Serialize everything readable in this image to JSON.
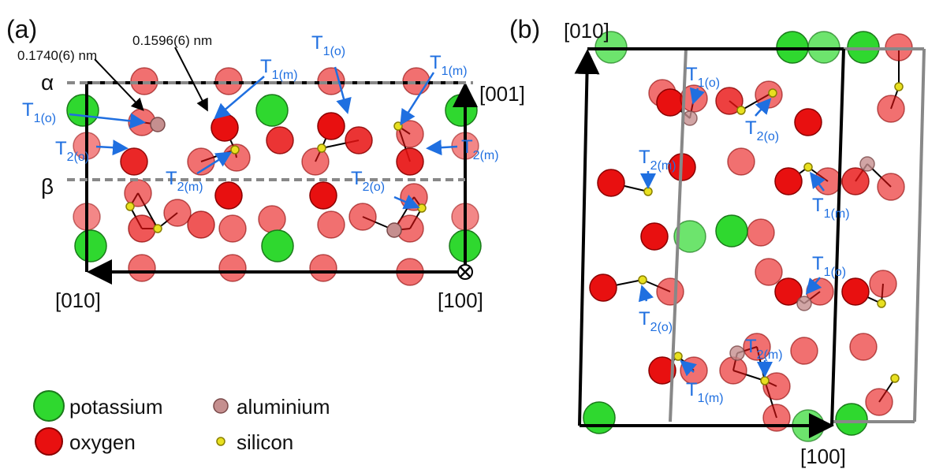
{
  "panel_a": {
    "label": "(a)",
    "bond_lengths": [
      "0.1740(6) nm",
      "0.1596(6) nm"
    ],
    "planes": [
      "α",
      "β"
    ],
    "axes": [
      "[001]",
      "[010]",
      "[100]"
    ],
    "sites": [
      {
        "symbol": "T",
        "sub": "1(o)"
      },
      {
        "symbol": "T",
        "sub": "1(m)"
      },
      {
        "symbol": "T",
        "sub": "1(m)"
      },
      {
        "symbol": "T",
        "sub": "1(o)"
      },
      {
        "symbol": "T",
        "sub": "2(o)"
      },
      {
        "symbol": "T",
        "sub": "2(m)"
      },
      {
        "symbol": "T",
        "sub": "2(m)"
      },
      {
        "symbol": "T",
        "sub": "2(o)"
      }
    ]
  },
  "panel_b": {
    "label": "(b)",
    "axes": [
      "[010]",
      "[100]"
    ],
    "sites": [
      {
        "symbol": "T",
        "sub": "1(o)"
      },
      {
        "symbol": "T",
        "sub": "2(o)"
      },
      {
        "symbol": "T",
        "sub": "2(m)"
      },
      {
        "symbol": "T",
        "sub": "1(m)"
      },
      {
        "symbol": "T",
        "sub": "1(o)"
      },
      {
        "symbol": "T",
        "sub": "2(o)"
      },
      {
        "symbol": "T",
        "sub": "2(m)"
      },
      {
        "symbol": "T",
        "sub": "1(m)"
      }
    ]
  },
  "legend": [
    "potassium",
    "aluminium",
    "oxygen",
    "silicon"
  ]
}
